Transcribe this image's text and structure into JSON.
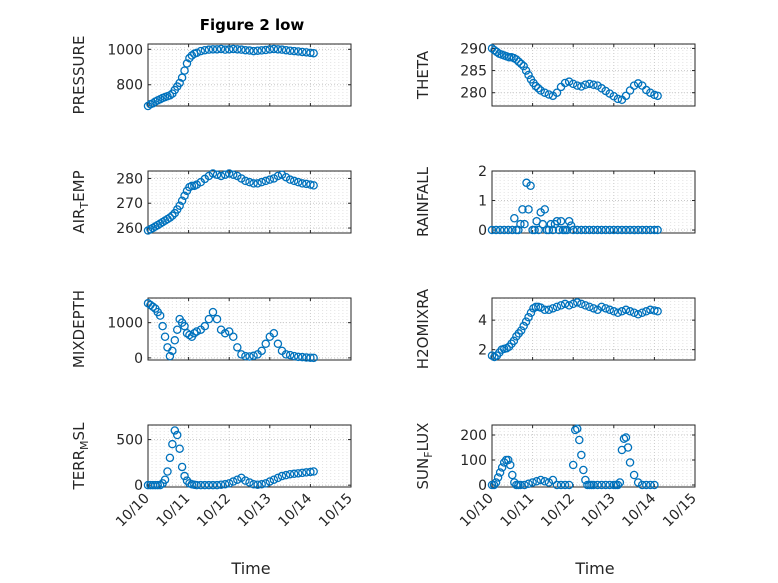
{
  "figure": {
    "title": "Figure 2 low",
    "xlabel": "Time",
    "marker_color": "#0072BD"
  },
  "chart_data": [
    {
      "type": "scatter",
      "id": "pressure",
      "ylabel": "PRESSURE",
      "ylabel_main": "PRESSURE",
      "ylabel_sub": "",
      "ylabel_tail": "",
      "title": "Figure 2 low",
      "ylim": [
        680,
        1030
      ],
      "yticks": [
        800,
        1000
      ],
      "xlim": [
        0,
        5
      ],
      "xticks": [
        "10/10",
        "10/11",
        "10/12",
        "10/13",
        "10/14",
        "10/15"
      ],
      "x": [
        0.0,
        0.06,
        0.12,
        0.18,
        0.24,
        0.3,
        0.36,
        0.42,
        0.48,
        0.54,
        0.6,
        0.66,
        0.72,
        0.78,
        0.84,
        0.9,
        0.96,
        1.02,
        1.08,
        1.14,
        1.2,
        1.3,
        1.4,
        1.5,
        1.6,
        1.7,
        1.8,
        1.9,
        2.0,
        2.1,
        2.2,
        2.3,
        2.4,
        2.5,
        2.6,
        2.7,
        2.8,
        2.9,
        3.0,
        3.1,
        3.2,
        3.3,
        3.4,
        3.5,
        3.6,
        3.7,
        3.8,
        3.9,
        4.0,
        4.08
      ],
      "y": [
        680,
        690,
        695,
        705,
        712,
        718,
        725,
        730,
        735,
        740,
        750,
        770,
        790,
        810,
        840,
        880,
        920,
        950,
        965,
        975,
        980,
        990,
        995,
        998,
        1000,
        1000,
        1002,
        998,
        1000,
        1002,
        1000,
        998,
        995,
        993,
        990,
        992,
        994,
        996,
        1000,
        1002,
        1000,
        998,
        995,
        992,
        990,
        988,
        985,
        983,
        980,
        978
      ]
    },
    {
      "type": "scatter",
      "id": "theta",
      "ylabel": "THETA",
      "ylabel_main": "THETA",
      "ylabel_sub": "",
      "ylabel_tail": "",
      "ylim": [
        277,
        291
      ],
      "yticks": [
        280,
        285,
        290
      ],
      "xlim": [
        0,
        5
      ],
      "xticks": [
        "10/10",
        "10/11",
        "10/12",
        "10/13",
        "10/14",
        "10/15"
      ],
      "x": [
        0.0,
        0.06,
        0.12,
        0.18,
        0.24,
        0.3,
        0.36,
        0.42,
        0.48,
        0.54,
        0.6,
        0.66,
        0.72,
        0.78,
        0.84,
        0.9,
        0.96,
        1.02,
        1.08,
        1.14,
        1.2,
        1.3,
        1.4,
        1.5,
        1.6,
        1.7,
        1.8,
        1.9,
        2.0,
        2.1,
        2.2,
        2.3,
        2.4,
        2.5,
        2.6,
        2.7,
        2.8,
        2.9,
        3.0,
        3.1,
        3.2,
        3.3,
        3.4,
        3.5,
        3.6,
        3.7,
        3.8,
        3.9,
        4.0,
        4.08
      ],
      "y": [
        290,
        289.6,
        289.2,
        288.8,
        288.6,
        288.4,
        288.2,
        288,
        288,
        287.8,
        287.5,
        287,
        286.5,
        286,
        285,
        284,
        283,
        282.2,
        281.5,
        281,
        280.5,
        280,
        279.6,
        279.3,
        280,
        281.3,
        282.2,
        282.5,
        282,
        281.6,
        281.4,
        281.8,
        282,
        281.8,
        281.6,
        281,
        280.4,
        279.8,
        279.2,
        278.6,
        278.4,
        279.3,
        280.5,
        281.6,
        282.1,
        281.6,
        280.6,
        280,
        279.5,
        279.3
      ]
    },
    {
      "type": "scatter",
      "id": "air_temp",
      "ylabel": "AIR_TEMP",
      "ylabel_main": "AIR",
      "ylabel_sub": "T",
      "ylabel_tail": "EMP",
      "ylim": [
        258,
        283
      ],
      "yticks": [
        260,
        270,
        280
      ],
      "xlim": [
        0,
        5
      ],
      "xticks": [
        "10/10",
        "10/11",
        "10/12",
        "10/13",
        "10/14",
        "10/15"
      ],
      "x": [
        0.0,
        0.06,
        0.12,
        0.18,
        0.24,
        0.3,
        0.36,
        0.42,
        0.48,
        0.54,
        0.6,
        0.66,
        0.72,
        0.78,
        0.84,
        0.9,
        0.96,
        1.02,
        1.08,
        1.14,
        1.2,
        1.3,
        1.4,
        1.5,
        1.6,
        1.7,
        1.8,
        1.9,
        2.0,
        2.1,
        2.2,
        2.3,
        2.4,
        2.5,
        2.6,
        2.7,
        2.8,
        2.9,
        3.0,
        3.1,
        3.2,
        3.3,
        3.4,
        3.5,
        3.6,
        3.7,
        3.8,
        3.9,
        4.0,
        4.08
      ],
      "y": [
        259,
        259.5,
        260,
        260.6,
        261.2,
        261.8,
        262.4,
        263,
        263.6,
        264.2,
        265,
        266,
        267.5,
        269,
        271,
        273,
        275,
        276.5,
        277,
        277,
        277.5,
        278.5,
        279.8,
        281,
        282,
        281.5,
        281,
        281.5,
        282,
        281.5,
        281,
        280,
        279,
        278.5,
        278,
        278,
        278.5,
        279,
        279.5,
        280,
        281,
        281.5,
        280.5,
        279.5,
        279,
        278.5,
        278,
        277.8,
        277.5,
        277.2
      ]
    },
    {
      "type": "scatter",
      "id": "rainfall",
      "ylabel": "RAINFALL",
      "ylabel_main": "RAINFALL",
      "ylabel_sub": "",
      "ylabel_tail": "",
      "ylim": [
        -0.1,
        2
      ],
      "yticks": [
        0,
        1,
        2
      ],
      "xlim": [
        0,
        5
      ],
      "xticks": [
        "10/10",
        "10/11",
        "10/12",
        "10/13",
        "10/14",
        "10/15"
      ],
      "x": [
        0.0,
        0.1,
        0.2,
        0.3,
        0.4,
        0.5,
        0.55,
        0.6,
        0.65,
        0.7,
        0.75,
        0.8,
        0.85,
        0.9,
        0.95,
        1.0,
        1.05,
        1.1,
        1.15,
        1.2,
        1.25,
        1.3,
        1.35,
        1.4,
        1.45,
        1.5,
        1.55,
        1.6,
        1.65,
        1.7,
        1.75,
        1.8,
        1.85,
        1.9,
        1.95,
        2.0,
        2.1,
        2.2,
        2.3,
        2.4,
        2.5,
        2.6,
        2.7,
        2.8,
        2.9,
        3.0,
        3.1,
        3.2,
        3.3,
        3.4,
        3.5,
        3.6,
        3.7,
        3.8,
        3.9,
        4.0,
        4.08
      ],
      "y": [
        0,
        0,
        0,
        0,
        0,
        0,
        0.4,
        0,
        0,
        0.2,
        0.7,
        0.2,
        1.6,
        0.7,
        1.5,
        0,
        0,
        0.3,
        0,
        0.6,
        0.2,
        0.7,
        0,
        0,
        0.2,
        0,
        0.2,
        0.3,
        0,
        0.3,
        0,
        0,
        0,
        0.3,
        0.15,
        0,
        0,
        0,
        0,
        0,
        0,
        0,
        0,
        0,
        0,
        0,
        0,
        0,
        0,
        0,
        0,
        0,
        0,
        0,
        0,
        0,
        0
      ]
    },
    {
      "type": "scatter",
      "id": "mixdepth",
      "ylabel": "MIXDEPTH",
      "ylabel_main": "MIXDEPTH",
      "ylabel_sub": "",
      "ylabel_tail": "",
      "ylim": [
        -60,
        1700
      ],
      "yticks": [
        0,
        1000
      ],
      "xlim": [
        0,
        5
      ],
      "xticks": [
        "10/10",
        "10/11",
        "10/12",
        "10/13",
        "10/14",
        "10/15"
      ],
      "x": [
        0.0,
        0.06,
        0.12,
        0.18,
        0.24,
        0.3,
        0.36,
        0.42,
        0.48,
        0.54,
        0.6,
        0.66,
        0.72,
        0.78,
        0.84,
        0.9,
        0.96,
        1.02,
        1.08,
        1.14,
        1.2,
        1.3,
        1.4,
        1.5,
        1.6,
        1.7,
        1.8,
        1.9,
        2.0,
        2.1,
        2.2,
        2.3,
        2.4,
        2.5,
        2.6,
        2.7,
        2.8,
        2.9,
        3.0,
        3.1,
        3.2,
        3.3,
        3.4,
        3.5,
        3.6,
        3.7,
        3.8,
        3.9,
        4.0,
        4.08
      ],
      "y": [
        1550,
        1500,
        1450,
        1400,
        1300,
        1200,
        900,
        600,
        300,
        50,
        200,
        500,
        800,
        1100,
        1000,
        900,
        700,
        650,
        600,
        700,
        750,
        800,
        900,
        1100,
        1300,
        1100,
        800,
        700,
        750,
        600,
        300,
        100,
        50,
        40,
        60,
        100,
        200,
        400,
        600,
        700,
        400,
        200,
        100,
        80,
        50,
        30,
        20,
        10,
        5,
        0
      ]
    },
    {
      "type": "scatter",
      "id": "h2omixra",
      "ylabel": "H2OMIXRA",
      "ylabel_main": "H2OMIXRA",
      "ylabel_sub": "",
      "ylabel_tail": "",
      "ylim": [
        1.3,
        5.5
      ],
      "yticks": [
        2,
        4
      ],
      "xlim": [
        0,
        5
      ],
      "xticks": [
        "10/10",
        "10/11",
        "10/12",
        "10/13",
        "10/14",
        "10/15"
      ],
      "x": [
        0.0,
        0.06,
        0.12,
        0.18,
        0.24,
        0.3,
        0.36,
        0.42,
        0.48,
        0.54,
        0.6,
        0.66,
        0.72,
        0.78,
        0.84,
        0.9,
        0.96,
        1.02,
        1.08,
        1.14,
        1.2,
        1.3,
        1.4,
        1.5,
        1.6,
        1.7,
        1.8,
        1.9,
        2.0,
        2.1,
        2.2,
        2.3,
        2.4,
        2.5,
        2.6,
        2.7,
        2.8,
        2.9,
        3.0,
        3.1,
        3.2,
        3.3,
        3.4,
        3.5,
        3.6,
        3.7,
        3.8,
        3.9,
        4.0,
        4.08
      ],
      "y": [
        1.6,
        1.5,
        1.6,
        1.8,
        2,
        2.05,
        2.1,
        2.2,
        2.4,
        2.6,
        2.9,
        3.1,
        3.3,
        3.6,
        3.9,
        4.2,
        4.5,
        4.8,
        4.9,
        4.9,
        4.85,
        4.7,
        4.7,
        4.8,
        4.9,
        5,
        5.1,
        5,
        5.1,
        5.2,
        5.1,
        5,
        4.9,
        4.8,
        4.7,
        4.9,
        4.8,
        4.7,
        4.6,
        4.5,
        4.6,
        4.7,
        4.6,
        4.5,
        4.4,
        4.5,
        4.6,
        4.7,
        4.65,
        4.6
      ]
    },
    {
      "type": "scatter",
      "id": "terr_msl",
      "ylabel": "TERR_MSL",
      "ylabel_main": "TERR",
      "ylabel_sub": "M",
      "ylabel_tail": "SL",
      "ylim": [
        -20,
        660
      ],
      "yticks": [
        0,
        500
      ],
      "xlim": [
        0,
        5
      ],
      "xticks": [
        "10/10",
        "10/11",
        "10/12",
        "10/13",
        "10/14",
        "10/15"
      ],
      "x": [
        0.0,
        0.06,
        0.12,
        0.18,
        0.24,
        0.3,
        0.36,
        0.42,
        0.48,
        0.54,
        0.6,
        0.66,
        0.72,
        0.78,
        0.84,
        0.9,
        0.96,
        1.02,
        1.08,
        1.14,
        1.2,
        1.3,
        1.4,
        1.5,
        1.6,
        1.7,
        1.8,
        1.9,
        2.0,
        2.1,
        2.2,
        2.3,
        2.4,
        2.5,
        2.6,
        2.7,
        2.8,
        2.9,
        3.0,
        3.1,
        3.2,
        3.3,
        3.4,
        3.5,
        3.6,
        3.7,
        3.8,
        3.9,
        4.0,
        4.08
      ],
      "y": [
        0,
        0,
        0,
        0,
        0,
        0,
        20,
        60,
        150,
        300,
        450,
        600,
        550,
        400,
        200,
        100,
        50,
        20,
        10,
        5,
        0,
        0,
        0,
        0,
        0,
        0,
        5,
        10,
        20,
        40,
        60,
        80,
        50,
        30,
        10,
        5,
        10,
        20,
        40,
        60,
        80,
        100,
        110,
        120,
        125,
        130,
        135,
        140,
        145,
        150
      ]
    },
    {
      "type": "scatter",
      "id": "sun_flux",
      "ylabel": "SUN_FLUX",
      "ylabel_main": "SUN",
      "ylabel_sub": "F",
      "ylabel_tail": "LUX",
      "ylim": [
        -8,
        240
      ],
      "yticks": [
        0,
        100,
        200
      ],
      "xlim": [
        0,
        5
      ],
      "xticks": [
        "10/10",
        "10/11",
        "10/12",
        "10/13",
        "10/14",
        "10/15"
      ],
      "x": [
        0.0,
        0.05,
        0.1,
        0.15,
        0.2,
        0.25,
        0.3,
        0.35,
        0.4,
        0.45,
        0.5,
        0.55,
        0.6,
        0.65,
        0.7,
        0.8,
        0.9,
        1.0,
        1.1,
        1.2,
        1.3,
        1.4,
        1.5,
        1.6,
        1.7,
        1.8,
        1.9,
        2.0,
        2.05,
        2.1,
        2.15,
        2.2,
        2.25,
        2.3,
        2.35,
        2.4,
        2.45,
        2.5,
        2.6,
        2.7,
        2.8,
        2.9,
        3.0,
        3.05,
        3.1,
        3.15,
        3.2,
        3.25,
        3.3,
        3.35,
        3.4,
        3.5,
        3.6,
        3.7,
        3.8,
        3.9,
        4.0
      ],
      "y": [
        0,
        0,
        10,
        30,
        50,
        70,
        90,
        100,
        100,
        80,
        40,
        10,
        0,
        0,
        0,
        0,
        5,
        10,
        15,
        20,
        15,
        10,
        20,
        0,
        0,
        0,
        0,
        80,
        220,
        225,
        180,
        120,
        60,
        20,
        0,
        0,
        0,
        0,
        0,
        0,
        0,
        0,
        0,
        0,
        0,
        10,
        140,
        185,
        190,
        150,
        90,
        40,
        10,
        0,
        0,
        0,
        0
      ]
    }
  ]
}
